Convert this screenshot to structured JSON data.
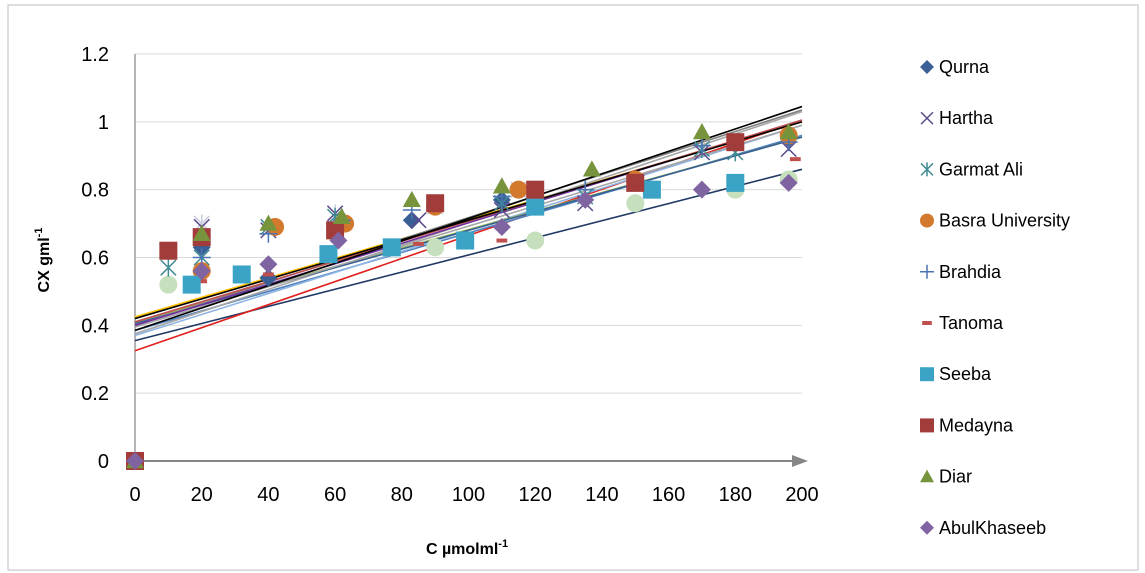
{
  "chart_data": {
    "type": "scatter",
    "xlabel": "C µmolml",
    "xlabel_sup": "-1",
    "ylabel": "CX gml",
    "ylabel_sup": "-1",
    "xlim": [
      0,
      200
    ],
    "ylim": [
      0,
      1.2
    ],
    "x_ticks": [
      "0",
      "20",
      "40",
      "60",
      "80",
      "100",
      "120",
      "140",
      "160",
      "180",
      "200"
    ],
    "y_ticks": [
      "0",
      "0.2",
      "0.4",
      "0.6",
      "0.8",
      "1",
      "1.2"
    ],
    "grid": "horizontal",
    "legend_position": "right",
    "series": [
      {
        "name": "Qurna",
        "marker": "diamond",
        "color": "#3a5f94",
        "x": [
          0,
          20,
          40,
          60,
          83,
          110,
          150,
          196
        ],
        "y": [
          0,
          0.63,
          0.54,
          0.68,
          0.71,
          0.77,
          0.82,
          0.95
        ]
      },
      {
        "name": "Hartha",
        "marker": "x",
        "color": "#5b4a8a",
        "x": [
          0,
          20,
          40,
          60,
          85,
          110,
          135,
          170,
          196
        ],
        "y": [
          0,
          0.69,
          0.68,
          0.73,
          0.71,
          0.74,
          0.76,
          0.91,
          0.92
        ]
      },
      {
        "name": "Garmat Ali",
        "marker": "asterisk",
        "color": "#3f8c93",
        "x": [
          0,
          10,
          20,
          40,
          60,
          110,
          135,
          170,
          180
        ],
        "y": [
          0,
          0.57,
          0.6,
          0.69,
          0.72,
          0.76,
          0.78,
          0.92,
          0.91
        ]
      },
      {
        "name": "Basra University",
        "marker": "circle",
        "color": "#d3792e",
        "x": [
          0,
          20,
          42,
          63,
          90,
          115,
          150,
          196
        ],
        "y": [
          0,
          0.56,
          0.69,
          0.7,
          0.75,
          0.8,
          0.83,
          0.96
        ]
      },
      {
        "name": "Brahdia",
        "marker": "plus",
        "color": "#4a74b4",
        "x": [
          0,
          20,
          40,
          62,
          83,
          110,
          135,
          170,
          196
        ],
        "y": [
          0,
          0.6,
          0.67,
          0.71,
          0.74,
          0.78,
          0.8,
          0.93,
          0.94
        ]
      },
      {
        "name": "Tanoma",
        "marker": "dash",
        "color": "#c0504d",
        "x": [
          0,
          10,
          20,
          40,
          85,
          110,
          150,
          196,
          198
        ],
        "y": [
          0,
          0.6,
          0.53,
          0.55,
          0.64,
          0.65,
          0.81,
          0.82,
          0.89
        ]
      },
      {
        "name": "Seeba",
        "marker": "square",
        "color": "#3ba4c6",
        "x": [
          0,
          17,
          32,
          58,
          77,
          99,
          120,
          155,
          180
        ],
        "y": [
          0,
          0.52,
          0.55,
          0.61,
          0.63,
          0.65,
          0.75,
          0.8,
          0.82
        ]
      },
      {
        "name": "Medayna",
        "marker": "square",
        "color": "#a23c3b",
        "x": [
          0,
          10,
          20,
          60,
          90,
          120,
          150,
          180
        ],
        "y": [
          0,
          0.62,
          0.66,
          0.68,
          0.76,
          0.8,
          0.82,
          0.94
        ]
      },
      {
        "name": "Diar",
        "marker": "triangle",
        "color": "#77943c",
        "x": [
          0,
          20,
          40,
          62,
          83,
          110,
          137,
          170,
          196
        ],
        "y": [
          0,
          0.67,
          0.7,
          0.72,
          0.77,
          0.81,
          0.86,
          0.97,
          0.97
        ]
      },
      {
        "name": "AbulKhaseeb",
        "marker": "diamond",
        "color": "#8064a2",
        "x": [
          0,
          20,
          40,
          61,
          110,
          135,
          170,
          196
        ],
        "y": [
          0,
          0.56,
          0.58,
          0.65,
          0.69,
          0.77,
          0.8,
          0.82
        ]
      }
    ],
    "unlabeled_points": [
      {
        "color": "#c6dfbc",
        "marker": "circle",
        "x": [
          10,
          90,
          120,
          150,
          180,
          196
        ],
        "y": [
          0.52,
          0.63,
          0.65,
          0.76,
          0.8,
          0.83
        ]
      },
      {
        "color": "#c9ccdd",
        "marker": "asterisk",
        "x": [
          20,
          60,
          90,
          115
        ],
        "y": [
          0.7,
          0.73,
          0.75,
          0.8
        ]
      }
    ],
    "trendlines": [
      {
        "color": "#1f3864",
        "y0": 0.355,
        "y200": 0.86
      },
      {
        "color": "#e0201c",
        "y0": 0.325,
        "y200": 1.005
      },
      {
        "color": "#ffc000",
        "y0": 0.425,
        "y200": 1.0
      },
      {
        "color": "#4f81bd",
        "y0": 0.385,
        "y200": 0.96
      },
      {
        "color": "#8eb4e3",
        "y0": 0.37,
        "y200": 0.99
      },
      {
        "color": "#a6a6a6",
        "y0": 0.375,
        "y200": 1.03
      },
      {
        "color": "#9bbb59",
        "y0": 0.41,
        "y200": 0.955
      },
      {
        "color": "#376092",
        "y0": 0.405,
        "y200": 0.955
      },
      {
        "color": "#a5a5a5",
        "y0": 0.395,
        "y200": 0.99
      },
      {
        "color": "#7f7f7f",
        "y0": 0.4,
        "y200": 1.035
      },
      {
        "color": "#7030a0",
        "y0": 0.4,
        "y200": 1.005
      },
      {
        "color": "#c0504d",
        "y0": 0.41,
        "y200": 1.005
      },
      {
        "color": "#000000",
        "y0": 0.42,
        "y200": 1.0
      },
      {
        "color": "#000000",
        "y0": 0.385,
        "y200": 1.045
      }
    ]
  }
}
